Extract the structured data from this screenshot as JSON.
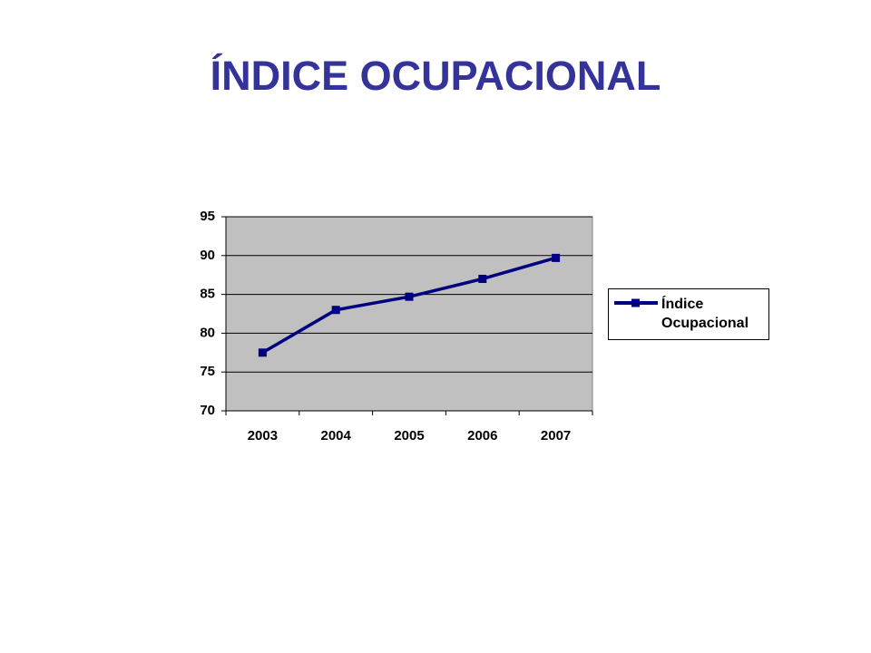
{
  "title": "ÍNDICE OCUPACIONAL",
  "chart_data": {
    "type": "line",
    "categories": [
      "2003",
      "2004",
      "2005",
      "2006",
      "2007"
    ],
    "series": [
      {
        "name": "Índice Ocupacional",
        "color": "#000080",
        "values": [
          77.5,
          83,
          84.7,
          87,
          89.7
        ]
      }
    ],
    "ylim": [
      70,
      95
    ],
    "yticks": [
      70,
      75,
      80,
      85,
      90,
      95
    ],
    "grid": true,
    "plot_background": "#c0c0c0",
    "legend": "right"
  }
}
